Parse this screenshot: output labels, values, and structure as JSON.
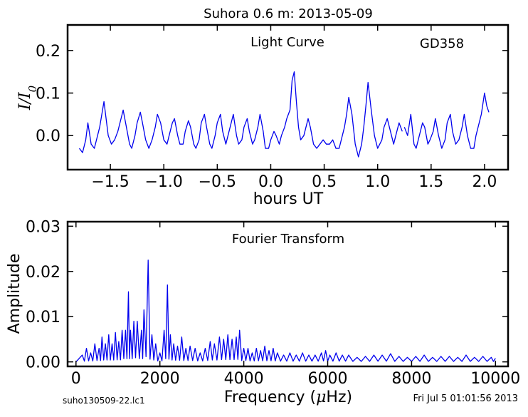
{
  "page": {
    "title": "Suhora 0.6 m:  2013-05-09",
    "footer_left": "suho130509-22.lc1",
    "footer_right": "Fri Jul  5 01:01:56 2013"
  },
  "chart_data": [
    {
      "type": "line",
      "title": "Light Curve",
      "annotation": "GD358",
      "xlabel": "hours UT",
      "ylabel": "I/I0",
      "xlim": [
        -1.9,
        2.22
      ],
      "ylim": [
        -0.08,
        0.26
      ],
      "xticks": [
        -1.5,
        -1.0,
        -0.5,
        0.0,
        0.5,
        1.0,
        1.5,
        2.0
      ],
      "xtick_labels": [
        "−1.5",
        "−1.0",
        "−0.5",
        "0.0",
        "0.5",
        "1.0",
        "1.5",
        "2.0"
      ],
      "yticks": [
        0.0,
        0.1,
        0.2
      ],
      "ytick_labels": [
        "0.0",
        "0.1",
        "0.2"
      ],
      "line_color": "#0000ee",
      "series": [
        {
          "x": [
            -1.79,
            -1.76,
            -1.73,
            -1.71,
            -1.68,
            -1.65,
            -1.62,
            -1.6,
            -1.58,
            -1.56,
            -1.54,
            -1.52,
            -1.49,
            -1.46,
            -1.43,
            -1.4,
            -1.38,
            -1.35,
            -1.32,
            -1.3,
            -1.27,
            -1.25,
            -1.22,
            -1.2,
            -1.17,
            -1.14,
            -1.11,
            -1.08,
            -1.06,
            -1.03,
            -1.0,
            -0.97,
            -0.95,
            -0.92,
            -0.9,
            -0.87,
            -0.85,
            -0.82,
            -0.8,
            -0.77,
            -0.75,
            -0.72,
            -0.7,
            -0.67,
            -0.65,
            -0.62,
            -0.6,
            -0.57,
            -0.55,
            -0.52,
            -0.5,
            -0.47,
            -0.45,
            -0.42,
            -0.4,
            -0.37,
            -0.35,
            -0.32,
            -0.3,
            -0.27,
            -0.25,
            -0.22,
            -0.2,
            -0.17,
            -0.15,
            -0.12,
            -0.1,
            -0.07,
            -0.05,
            -0.02,
            0.0,
            0.03,
            0.05,
            0.08,
            0.1,
            0.13,
            0.15,
            0.18,
            0.2,
            0.22,
            0.24,
            0.26,
            0.28,
            0.31,
            0.33,
            0.35,
            0.37,
            0.4,
            0.43,
            0.46,
            0.49,
            0.52,
            0.55,
            0.58,
            0.61,
            0.64,
            0.67,
            0.69,
            0.71,
            0.73,
            0.76,
            0.79,
            0.82,
            0.85,
            0.87,
            0.89,
            0.91,
            0.94,
            0.97,
            1.0,
            1.02,
            1.04,
            1.06,
            1.09,
            1.12,
            1.15,
            1.17,
            1.2,
            1.23
          ],
          "values": [
            -0.03,
            -0.04,
            -0.01,
            0.03,
            -0.02,
            -0.03,
            0.0,
            0.02,
            0.05,
            0.08,
            0.04,
            0.0,
            -0.02,
            -0.01,
            0.01,
            0.04,
            0.06,
            0.02,
            -0.02,
            -0.03,
            0.0,
            0.03,
            0.055,
            0.03,
            -0.01,
            -0.03,
            -0.01,
            0.02,
            0.05,
            0.03,
            -0.01,
            -0.02,
            0.0,
            0.03,
            0.04,
            0.0,
            -0.02,
            -0.02,
            0.01,
            0.035,
            0.02,
            -0.02,
            -0.03,
            -0.01,
            0.03,
            0.05,
            0.02,
            -0.02,
            -0.03,
            0.0,
            0.03,
            0.05,
            0.01,
            -0.02,
            0.0,
            0.03,
            0.05,
            0.0,
            -0.02,
            -0.01,
            0.02,
            0.04,
            0.01,
            -0.02,
            -0.01,
            0.02,
            0.05,
            0.01,
            -0.03,
            -0.03,
            -0.01,
            0.01,
            0.0,
            -0.02,
            0.0,
            0.02,
            0.04,
            0.06,
            0.13,
            0.15,
            0.08,
            0.02,
            -0.01,
            0.0,
            0.02,
            0.04,
            0.02,
            -0.02,
            -0.03,
            -0.02,
            -0.01,
            -0.02,
            -0.02,
            -0.01,
            -0.03,
            -0.03,
            0.0,
            0.02,
            0.05,
            0.09,
            0.05,
            -0.02,
            -0.05,
            -0.02,
            0.02,
            0.07,
            0.125,
            0.06,
            0.0,
            -0.03,
            -0.02,
            -0.01,
            0.02,
            0.04,
            0.01,
            -0.02,
            0.0,
            0.03,
            0.01
          ]
        },
        {
          "x": [
            1.25,
            1.28,
            1.31,
            1.34,
            1.36,
            1.39,
            1.42,
            1.44,
            1.47,
            1.49,
            1.52,
            1.54,
            1.57,
            1.6,
            1.63,
            1.65,
            1.68,
            1.7,
            1.73,
            1.76,
            1.79,
            1.81,
            1.84,
            1.87,
            1.9,
            1.92,
            1.95,
            1.97,
            2.0,
            2.02,
            2.04
          ],
          "values": [
            0.02,
            0.0,
            0.05,
            -0.02,
            -0.03,
            0.0,
            0.03,
            0.02,
            -0.02,
            -0.01,
            0.01,
            0.04,
            0.0,
            -0.03,
            -0.01,
            0.03,
            0.05,
            0.01,
            -0.02,
            -0.01,
            0.02,
            0.05,
            0.0,
            -0.03,
            -0.03,
            0.0,
            0.03,
            0.05,
            0.1,
            0.07,
            0.055
          ]
        }
      ]
    },
    {
      "type": "line",
      "title": "Fourier Transform",
      "xlabel": "Frequency (μHz)",
      "ylabel": "Amplitude",
      "xlim": [
        -200,
        10300
      ],
      "ylim": [
        -0.001,
        0.031
      ],
      "xticks": [
        0,
        2000,
        4000,
        6000,
        8000,
        10000
      ],
      "xtick_labels": [
        "0",
        "2000",
        "4000",
        "6000",
        "8000",
        "10000"
      ],
      "yticks": [
        0.0,
        0.01,
        0.02,
        0.03
      ],
      "ytick_labels": [
        "0.00",
        "0.01",
        "0.02",
        "0.03"
      ],
      "line_color": "#0000ee",
      "peaks": [
        [
          0,
          0.0
        ],
        [
          150,
          0.0015
        ],
        [
          250,
          0.003
        ],
        [
          350,
          0.002
        ],
        [
          450,
          0.004
        ],
        [
          550,
          0.003
        ],
        [
          620,
          0.0055
        ],
        [
          700,
          0.004
        ],
        [
          780,
          0.006
        ],
        [
          860,
          0.004
        ],
        [
          940,
          0.0065
        ],
        [
          1020,
          0.0045
        ],
        [
          1100,
          0.007
        ],
        [
          1180,
          0.007
        ],
        [
          1250,
          0.0155
        ],
        [
          1300,
          0.007
        ],
        [
          1380,
          0.009
        ],
        [
          1460,
          0.009
        ],
        [
          1560,
          0.007
        ],
        [
          1620,
          0.0115
        ],
        [
          1720,
          0.0225
        ],
        [
          1810,
          0.006
        ],
        [
          1900,
          0.004
        ],
        [
          2000,
          0.002
        ],
        [
          2100,
          0.007
        ],
        [
          2180,
          0.017
        ],
        [
          2250,
          0.006
        ],
        [
          2330,
          0.004
        ],
        [
          2420,
          0.0035
        ],
        [
          2520,
          0.0055
        ],
        [
          2620,
          0.003
        ],
        [
          2720,
          0.0035
        ],
        [
          2840,
          0.003
        ],
        [
          2960,
          0.002
        ],
        [
          3080,
          0.003
        ],
        [
          3200,
          0.0045
        ],
        [
          3300,
          0.004
        ],
        [
          3420,
          0.0055
        ],
        [
          3520,
          0.005
        ],
        [
          3620,
          0.006
        ],
        [
          3720,
          0.005
        ],
        [
          3820,
          0.0055
        ],
        [
          3900,
          0.007
        ],
        [
          4000,
          0.003
        ],
        [
          4100,
          0.003
        ],
        [
          4200,
          0.002
        ],
        [
          4300,
          0.003
        ],
        [
          4400,
          0.0025
        ],
        [
          4500,
          0.0035
        ],
        [
          4600,
          0.0025
        ],
        [
          4700,
          0.003
        ],
        [
          4800,
          0.002
        ],
        [
          4950,
          0.0015
        ],
        [
          5100,
          0.002
        ],
        [
          5250,
          0.0015
        ],
        [
          5400,
          0.002
        ],
        [
          5550,
          0.0015
        ],
        [
          5700,
          0.0015
        ],
        [
          5850,
          0.002
        ],
        [
          5950,
          0.0025
        ],
        [
          6050,
          0.0015
        ],
        [
          6200,
          0.002
        ],
        [
          6350,
          0.0015
        ],
        [
          6500,
          0.0015
        ],
        [
          6700,
          0.001
        ],
        [
          6900,
          0.0012
        ],
        [
          7100,
          0.0015
        ],
        [
          7300,
          0.0015
        ],
        [
          7500,
          0.0018
        ],
        [
          7700,
          0.0012
        ],
        [
          7900,
          0.001
        ],
        [
          8100,
          0.0012
        ],
        [
          8300,
          0.0015
        ],
        [
          8500,
          0.001
        ],
        [
          8700,
          0.0012
        ],
        [
          8900,
          0.0012
        ],
        [
          9100,
          0.001
        ],
        [
          9300,
          0.0015
        ],
        [
          9500,
          0.001
        ],
        [
          9700,
          0.0012
        ],
        [
          9900,
          0.001
        ],
        [
          10000,
          0.0008
        ]
      ]
    }
  ]
}
